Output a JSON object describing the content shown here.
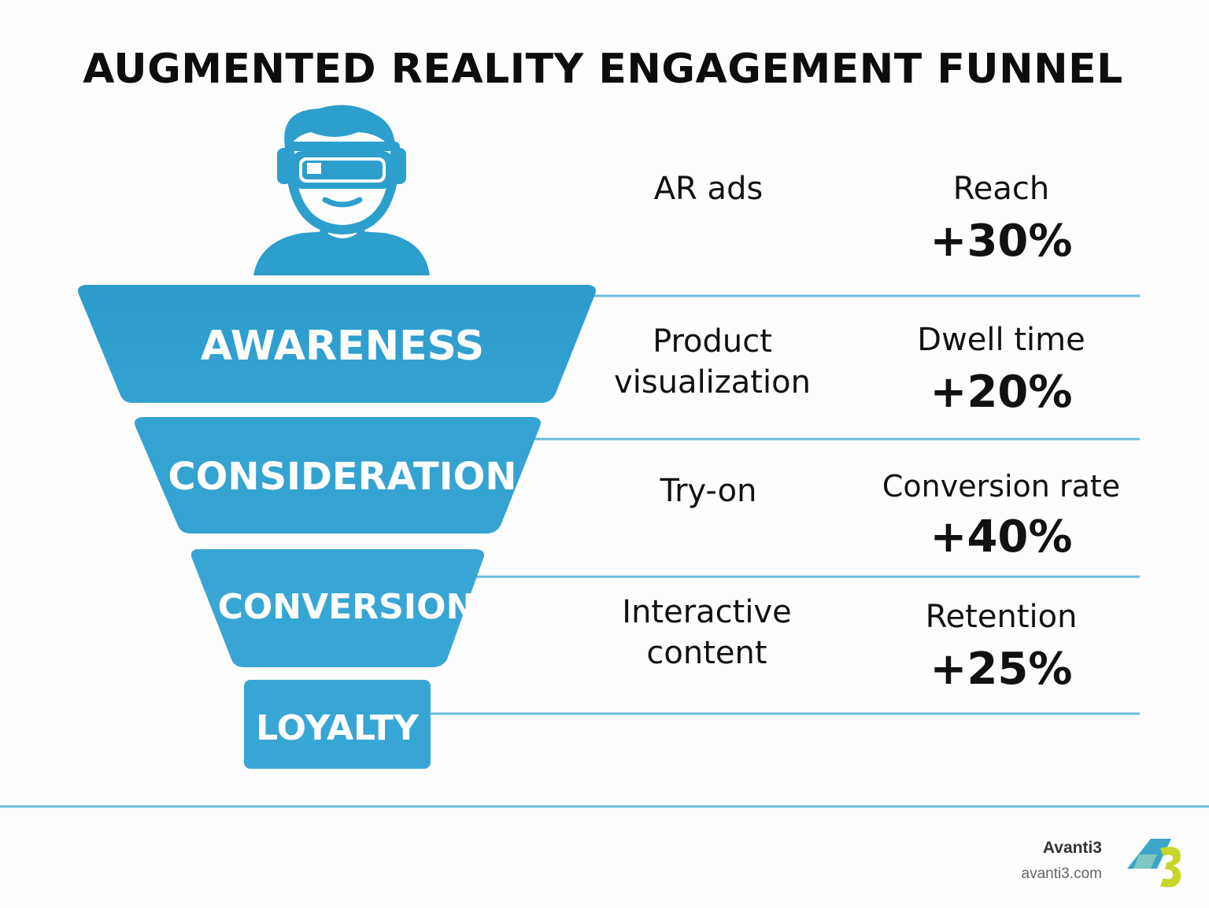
{
  "title": "AUGMENTED REALITY ENGAGEMENT FUNNEL",
  "stages": [
    {
      "label": "AWARENESS"
    },
    {
      "label": "CONSIDERATION"
    },
    {
      "label": "CONVERSION"
    },
    {
      "label": "LOYALTY"
    }
  ],
  "rows": [
    {
      "tactic_line1": "AR ads",
      "tactic_line2": "",
      "metric": "Reach",
      "value": "+30%"
    },
    {
      "tactic_line1": "Product",
      "tactic_line2": "visualization",
      "metric": "Dwell time",
      "value": "+20%"
    },
    {
      "tactic_line1": "Try-on",
      "tactic_line2": "",
      "metric": "Conversion rate",
      "value": "+40%"
    },
    {
      "tactic_line1": "Interactive",
      "tactic_line2": "content",
      "metric": "Retention",
      "value": "+25%"
    }
  ],
  "footer": {
    "brand": "Avanti3",
    "url": "avanti3.com"
  },
  "icons": {
    "user": "ar-headset-user-icon",
    "logo": "avanti3-logo-icon"
  },
  "colors": {
    "primary": "#2d9fcd",
    "line": "#6cb9dc",
    "logo_teal": "#3aa5c9",
    "logo_green": "#c7d62a"
  }
}
